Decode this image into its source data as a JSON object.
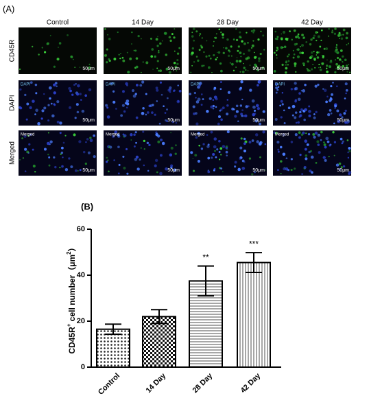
{
  "panel_a": {
    "label": "(A)",
    "columns": [
      "Control",
      "14 Day",
      "28 Day",
      "42 Day"
    ],
    "rows": [
      "CD45R",
      "DAPI",
      "Merged"
    ],
    "row_tags": [
      null,
      "DAPI",
      "Merged"
    ],
    "scale_bar": "50μm"
  },
  "chart_data": {
    "type": "bar",
    "panel_label": "(B)",
    "ylabel": [
      "CD45R",
      "+",
      " cell number（μm",
      "2",
      "）"
    ],
    "categories": [
      "Control",
      "14 Day",
      "28 Day",
      "42 Day"
    ],
    "values": [
      16.5,
      22,
      37.5,
      45.5
    ],
    "errors": [
      2.2,
      3,
      6.5,
      4.3
    ],
    "annotations": [
      null,
      null,
      "**",
      "***"
    ],
    "patterns": [
      "dots",
      "checker",
      "hlines",
      "vlines"
    ],
    "ylim": [
      0,
      60
    ],
    "yticks": [
      0,
      20,
      40,
      60
    ]
  }
}
